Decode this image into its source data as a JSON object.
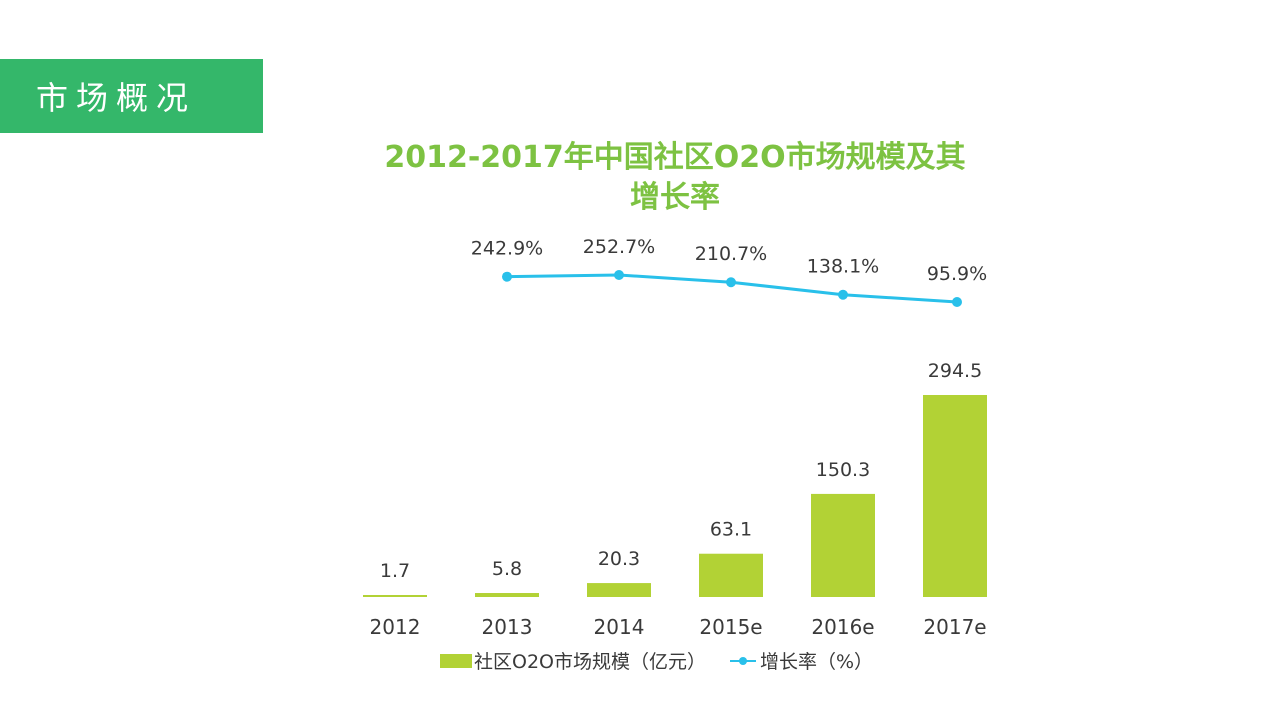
{
  "section": {
    "label": "市场概况"
  },
  "chart_data": {
    "type": "bar",
    "title_lines": [
      "2012-2017年中国社区O2O市场规模及其",
      "增长率"
    ],
    "categories": [
      "2012",
      "2013",
      "2014",
      "2015e",
      "2016e",
      "2017e"
    ],
    "series": [
      {
        "name": "社区O2O市场规模（亿元）",
        "type": "bar",
        "values": [
          1.7,
          5.8,
          20.3,
          63.1,
          150.3,
          294.5
        ],
        "labels": [
          "1.7",
          "5.8",
          "20.3",
          "63.1",
          "150.3",
          "294.5"
        ],
        "color": "#b2d235"
      },
      {
        "name": "增长率（%）",
        "type": "line",
        "values": [
          null,
          242.9,
          252.7,
          210.7,
          138.1,
          95.9
        ],
        "labels": [
          "",
          "242.9%",
          "252.7%",
          "210.7%",
          "138.1%",
          "95.9%"
        ],
        "color": "#29c0ea"
      }
    ],
    "legend_position": "bottom",
    "grid": false
  }
}
